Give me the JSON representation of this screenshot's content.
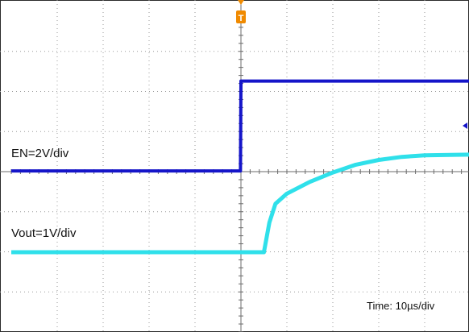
{
  "chart_data": {
    "type": "line",
    "title": "",
    "grid": true,
    "x_divisions": 10,
    "y_divisions": 8,
    "trigger_marker": "T",
    "series": [
      {
        "name": "EN=2V/div",
        "color": "#1515c9",
        "x": [
          0,
          4.99,
          5.0,
          10
        ],
        "y": [
          1.04,
          1.04,
          2.19,
          2.19
        ]
      },
      {
        "name": "Vout=1V/div",
        "color": "#2fe0ea",
        "x": [
          0,
          5.5,
          5.62,
          5.75,
          6.0,
          6.5,
          7.0,
          7.5,
          8.0,
          8.5,
          9.0,
          10
        ],
        "y": [
          0.0,
          0.0,
          0.38,
          0.62,
          0.75,
          0.9,
          1.02,
          1.12,
          1.18,
          1.22,
          1.24,
          1.25
        ]
      }
    ],
    "annotations": [
      "Time: 10µs/div"
    ]
  },
  "labels": {
    "en": "EN=2V/div",
    "vout": "Vout=1V/div",
    "time": "Time: 10µs/div",
    "trigger": "T"
  }
}
